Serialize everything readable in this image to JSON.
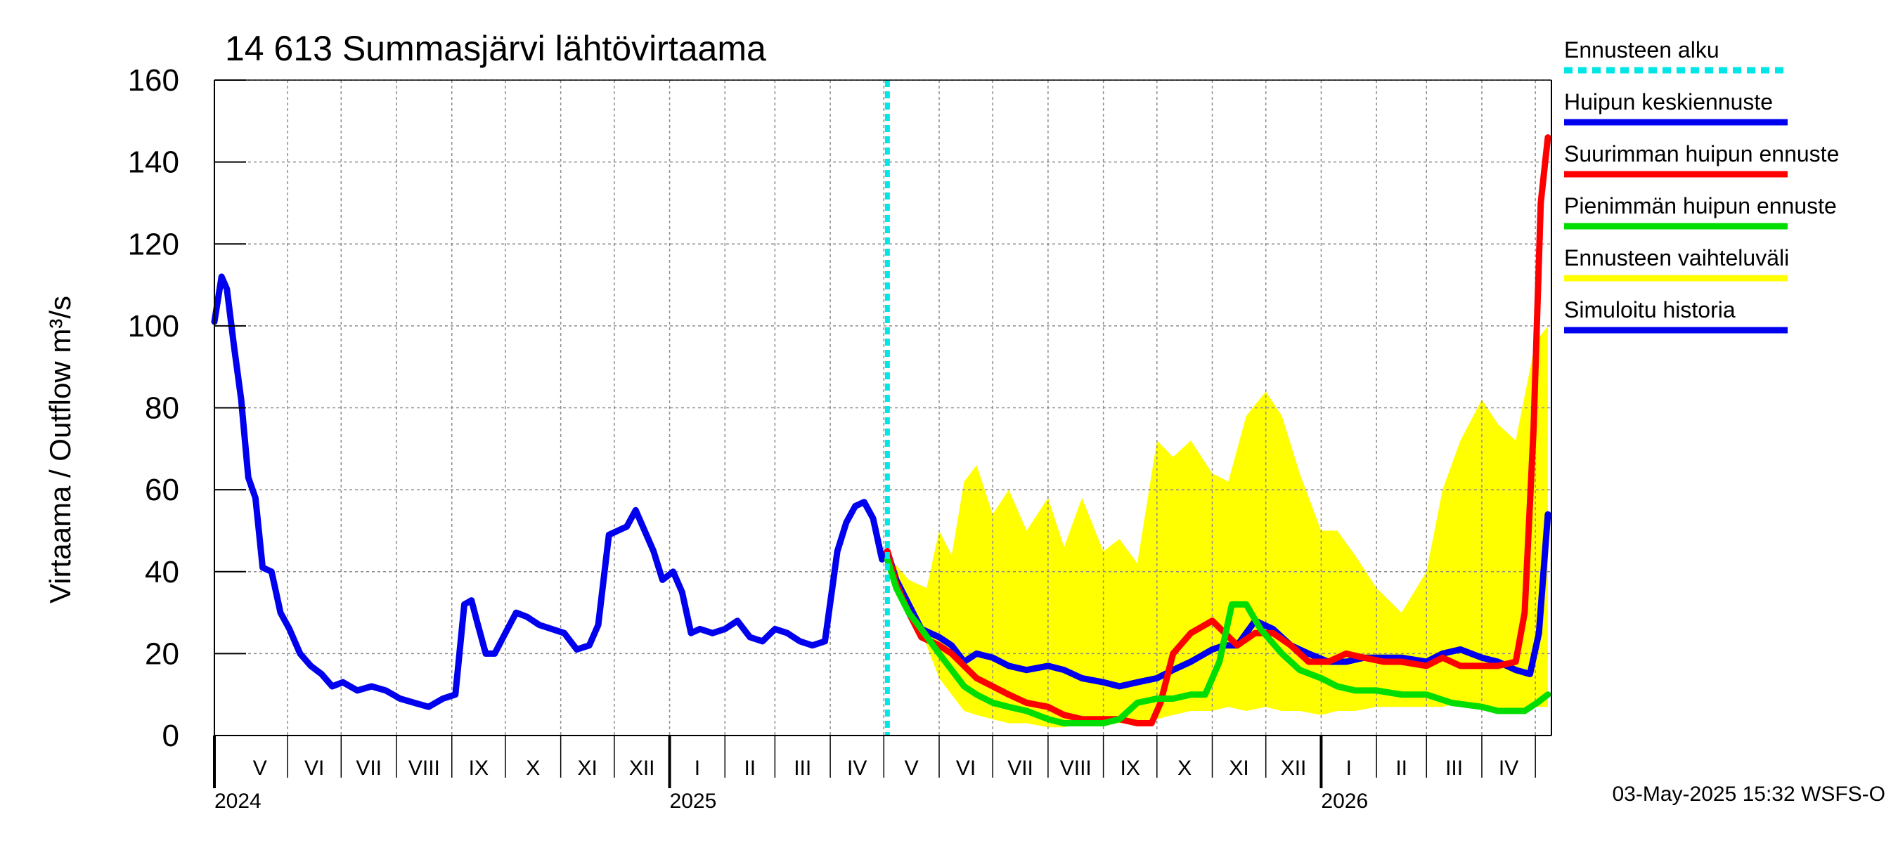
{
  "chart_data": {
    "type": "line",
    "title": "14 613 Summasjärvi lähtövirtaama",
    "ylabel": "Virtaama / Outflow    m³/s",
    "ylim": [
      0,
      160
    ],
    "yticks": [
      0,
      20,
      40,
      60,
      80,
      100,
      120,
      140,
      160
    ],
    "xlim": [
      "2024-04-21",
      "2026-05-10"
    ],
    "grid": true,
    "legend_position": "right",
    "forecast_start": "2025-05-03",
    "months": [
      {
        "label": "V",
        "start": "2024-05-01",
        "end": "2024-06-01"
      },
      {
        "label": "VI",
        "start": "2024-06-01",
        "end": "2024-07-01"
      },
      {
        "label": "VII",
        "start": "2024-07-01",
        "end": "2024-08-01"
      },
      {
        "label": "VIII",
        "start": "2024-08-01",
        "end": "2024-09-01"
      },
      {
        "label": "IX",
        "start": "2024-09-01",
        "end": "2024-10-01"
      },
      {
        "label": "X",
        "start": "2024-10-01",
        "end": "2024-11-01"
      },
      {
        "label": "XI",
        "start": "2024-11-01",
        "end": "2024-12-01"
      },
      {
        "label": "XII",
        "start": "2024-12-01",
        "end": "2025-01-01"
      },
      {
        "label": "I",
        "start": "2025-01-01",
        "end": "2025-02-01"
      },
      {
        "label": "II",
        "start": "2025-02-01",
        "end": "2025-03-01"
      },
      {
        "label": "III",
        "start": "2025-03-01",
        "end": "2025-04-01"
      },
      {
        "label": "IV",
        "start": "2025-04-01",
        "end": "2025-05-01"
      },
      {
        "label": "V",
        "start": "2025-05-01",
        "end": "2025-06-01"
      },
      {
        "label": "VI",
        "start": "2025-06-01",
        "end": "2025-07-01"
      },
      {
        "label": "VII",
        "start": "2025-07-01",
        "end": "2025-08-01"
      },
      {
        "label": "VIII",
        "start": "2025-08-01",
        "end": "2025-09-01"
      },
      {
        "label": "IX",
        "start": "2025-09-01",
        "end": "2025-10-01"
      },
      {
        "label": "X",
        "start": "2025-10-01",
        "end": "2025-11-01"
      },
      {
        "label": "XI",
        "start": "2025-11-01",
        "end": "2025-12-01"
      },
      {
        "label": "XII",
        "start": "2025-12-01",
        "end": "2026-01-01"
      },
      {
        "label": "I",
        "start": "2026-01-01",
        "end": "2026-02-01"
      },
      {
        "label": "II",
        "start": "2026-02-01",
        "end": "2026-03-01"
      },
      {
        "label": "III",
        "start": "2026-03-01",
        "end": "2026-04-01"
      },
      {
        "label": "IV",
        "start": "2026-04-01",
        "end": "2026-05-01"
      }
    ],
    "years": [
      {
        "label": "2024",
        "date": "2024-04-21",
        "boundary": "2024-04-21"
      },
      {
        "label": "2025",
        "date": "2025-01-01",
        "boundary": "2025-01-01"
      },
      {
        "label": "2026",
        "date": "2026-01-01",
        "boundary": "2026-01-01"
      }
    ],
    "series": [
      {
        "name": "Ennusteen vaihteluväli",
        "kind": "band",
        "color": "#ffff00",
        "x": [
          "2025-05-03",
          "2025-05-15",
          "2025-05-25",
          "2025-06-01",
          "2025-06-08",
          "2025-06-15",
          "2025-06-22",
          "2025-07-01",
          "2025-07-10",
          "2025-07-20",
          "2025-08-01",
          "2025-08-10",
          "2025-08-20",
          "2025-09-01",
          "2025-09-10",
          "2025-09-20",
          "2025-10-01",
          "2025-10-10",
          "2025-10-20",
          "2025-11-01",
          "2025-11-10",
          "2025-11-20",
          "2025-12-01",
          "2025-12-10",
          "2025-12-20",
          "2026-01-01",
          "2026-01-10",
          "2026-01-20",
          "2026-02-01",
          "2026-02-15",
          "2026-03-01",
          "2026-03-10",
          "2026-03-20",
          "2026-04-01",
          "2026-04-10",
          "2026-04-20",
          "2026-05-01",
          "2026-05-08"
        ],
        "upper": [
          44,
          38,
          36,
          50,
          44,
          62,
          66,
          54,
          60,
          50,
          58,
          46,
          58,
          45,
          48,
          42,
          72,
          68,
          72,
          64,
          62,
          78,
          84,
          78,
          64,
          50,
          50,
          44,
          36,
          30,
          40,
          60,
          72,
          82,
          76,
          72,
          96,
          100
        ],
        "lower": [
          41,
          32,
          22,
          14,
          10,
          6,
          5,
          4,
          3,
          3,
          2,
          2,
          3,
          3,
          3,
          3,
          4,
          5,
          6,
          6,
          7,
          6,
          7,
          6,
          6,
          5,
          6,
          6,
          7,
          7,
          7,
          7,
          8,
          7,
          6,
          6,
          7,
          7
        ]
      },
      {
        "name": "Simuloitu historia",
        "kind": "line",
        "color": "#0000ee",
        "x": [
          "2024-04-21",
          "2024-04-25",
          "2024-04-28",
          "2024-05-02",
          "2024-05-06",
          "2024-05-10",
          "2024-05-14",
          "2024-05-18",
          "2024-05-23",
          "2024-05-28",
          "2024-06-02",
          "2024-06-08",
          "2024-06-14",
          "2024-06-20",
          "2024-06-26",
          "2024-07-02",
          "2024-07-10",
          "2024-07-18",
          "2024-07-26",
          "2024-08-03",
          "2024-08-11",
          "2024-08-19",
          "2024-08-27",
          "2024-09-03",
          "2024-09-08",
          "2024-09-12",
          "2024-09-15",
          "2024-09-20",
          "2024-09-25",
          "2024-10-01",
          "2024-10-07",
          "2024-10-13",
          "2024-10-20",
          "2024-10-27",
          "2024-11-03",
          "2024-11-10",
          "2024-11-17",
          "2024-11-22",
          "2024-11-28",
          "2024-12-03",
          "2024-12-08",
          "2024-12-13",
          "2024-12-18",
          "2024-12-23",
          "2024-12-28",
          "2025-01-03",
          "2025-01-08",
          "2025-01-13",
          "2025-01-18",
          "2025-01-25",
          "2025-02-01",
          "2025-02-08",
          "2025-02-15",
          "2025-02-22",
          "2025-03-01",
          "2025-03-08",
          "2025-03-15",
          "2025-03-22",
          "2025-03-29",
          "2025-04-05",
          "2025-04-10",
          "2025-04-15",
          "2025-04-20",
          "2025-04-25",
          "2025-04-30",
          "2025-05-03"
        ],
        "values": [
          101,
          112,
          109,
          95,
          82,
          63,
          58,
          41,
          40,
          30,
          26,
          20,
          17,
          15,
          12,
          13,
          11,
          12,
          11,
          9,
          8,
          7,
          9,
          10,
          32,
          33,
          28,
          20,
          20,
          25,
          30,
          29,
          27,
          26,
          25,
          21,
          22,
          27,
          49,
          50,
          51,
          55,
          50,
          45,
          38,
          40,
          35,
          25,
          26,
          25,
          26,
          28,
          24,
          23,
          26,
          25,
          23,
          22,
          23,
          45,
          52,
          56,
          57,
          53,
          43,
          45
        ]
      },
      {
        "name": "Huipun keskiennuste",
        "kind": "line",
        "color": "#0000ee",
        "x": [
          "2025-05-03",
          "2025-05-08",
          "2025-05-15",
          "2025-05-22",
          "2025-06-01",
          "2025-06-08",
          "2025-06-15",
          "2025-06-22",
          "2025-07-01",
          "2025-07-10",
          "2025-07-20",
          "2025-08-01",
          "2025-08-10",
          "2025-08-20",
          "2025-09-01",
          "2025-09-10",
          "2025-09-20",
          "2025-10-01",
          "2025-10-10",
          "2025-10-20",
          "2025-11-01",
          "2025-11-08",
          "2025-11-15",
          "2025-11-25",
          "2025-12-05",
          "2025-12-15",
          "2025-12-25",
          "2026-01-05",
          "2026-01-15",
          "2026-01-25",
          "2026-02-05",
          "2026-02-15",
          "2026-03-01",
          "2026-03-10",
          "2026-03-20",
          "2026-04-01",
          "2026-04-10",
          "2026-04-20",
          "2026-04-28",
          "2026-05-03",
          "2026-05-08"
        ],
        "values": [
          45,
          38,
          32,
          26,
          24,
          22,
          18,
          20,
          19,
          17,
          16,
          17,
          16,
          14,
          13,
          12,
          13,
          14,
          16,
          18,
          21,
          22,
          22,
          28,
          26,
          22,
          20,
          18,
          18,
          19,
          19,
          19,
          18,
          20,
          21,
          19,
          18,
          16,
          15,
          25,
          54
        ]
      },
      {
        "name": "Suurimman huipun ennuste",
        "kind": "line",
        "color": "#ff0000",
        "x": [
          "2025-05-03",
          "2025-05-08",
          "2025-05-15",
          "2025-05-22",
          "2025-06-01",
          "2025-06-08",
          "2025-06-15",
          "2025-06-22",
          "2025-07-01",
          "2025-07-10",
          "2025-07-20",
          "2025-08-01",
          "2025-08-10",
          "2025-08-20",
          "2025-09-01",
          "2025-09-10",
          "2025-09-20",
          "2025-09-28",
          "2025-10-03",
          "2025-10-10",
          "2025-10-20",
          "2025-11-01",
          "2025-11-08",
          "2025-11-15",
          "2025-11-25",
          "2025-12-05",
          "2025-12-15",
          "2025-12-25",
          "2026-01-05",
          "2026-01-15",
          "2026-01-25",
          "2026-02-05",
          "2026-02-15",
          "2026-03-01",
          "2026-03-10",
          "2026-03-20",
          "2026-04-01",
          "2026-04-10",
          "2026-04-20",
          "2026-04-25",
          "2026-04-30",
          "2026-05-04",
          "2026-05-08"
        ],
        "values": [
          45,
          37,
          30,
          24,
          22,
          20,
          17,
          14,
          12,
          10,
          8,
          7,
          5,
          4,
          4,
          4,
          3,
          3,
          8,
          20,
          25,
          28,
          25,
          22,
          25,
          25,
          22,
          18,
          18,
          20,
          19,
          18,
          18,
          17,
          19,
          17,
          17,
          17,
          18,
          30,
          75,
          130,
          146
        ]
      },
      {
        "name": "Pienimmän huipun ennuste",
        "kind": "line",
        "color": "#00dd00",
        "x": [
          "2025-05-03",
          "2025-05-08",
          "2025-05-15",
          "2025-05-22",
          "2025-06-01",
          "2025-06-08",
          "2025-06-15",
          "2025-06-22",
          "2025-07-01",
          "2025-07-10",
          "2025-07-20",
          "2025-08-01",
          "2025-08-10",
          "2025-08-20",
          "2025-09-01",
          "2025-09-10",
          "2025-09-20",
          "2025-10-01",
          "2025-10-10",
          "2025-10-20",
          "2025-10-28",
          "2025-11-05",
          "2025-11-12",
          "2025-11-20",
          "2025-11-28",
          "2025-12-10",
          "2025-12-20",
          "2026-01-01",
          "2026-01-10",
          "2026-01-20",
          "2026-02-01",
          "2026-02-15",
          "2026-03-01",
          "2026-03-15",
          "2026-04-01",
          "2026-04-10",
          "2026-04-20",
          "2026-04-25",
          "2026-05-02",
          "2026-05-08"
        ],
        "values": [
          43,
          36,
          30,
          26,
          20,
          16,
          12,
          10,
          8,
          7,
          6,
          4,
          3,
          3,
          3,
          4,
          8,
          9,
          9,
          10,
          10,
          18,
          32,
          32,
          26,
          20,
          16,
          14,
          12,
          11,
          11,
          10,
          10,
          8,
          7,
          6,
          6,
          6,
          8,
          10
        ]
      },
      {
        "name": "Ennusteen alku",
        "kind": "vline",
        "color": "#00e5e5"
      }
    ],
    "legend": [
      {
        "label": "Ennusteen alku",
        "color": "#00e5e5",
        "style": "dashed"
      },
      {
        "label": "Huipun keskiennuste",
        "color": "#0000ee",
        "style": "solid"
      },
      {
        "label": "Suurimman huipun ennuste",
        "color": "#ff0000",
        "style": "solid"
      },
      {
        "label": "Pienimmän huipun ennuste",
        "color": "#00dd00",
        "style": "solid"
      },
      {
        "label": "Ennusteen vaihteluväli",
        "color": "#ffff00",
        "style": "solid"
      },
      {
        "label": "Simuloitu historia",
        "color": "#0000ee",
        "style": "solid"
      }
    ]
  },
  "footer": "03-May-2025 15:32 WSFS-O"
}
